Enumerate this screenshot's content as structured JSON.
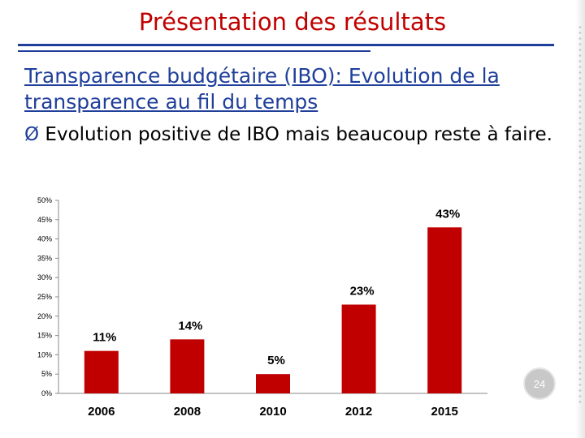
{
  "slide": {
    "title": "Présentation des résultats",
    "subtitle": "Transparence  budgétaire  (IBO):  Evolution de la transparence au fil du temps",
    "bullet_marker": "Ø",
    "bullet_text": "Evolution positive de IBO mais beaucoup reste à faire.",
    "page_number": "24"
  },
  "colors": {
    "title": "#c00000",
    "subtitle": "#1f3f9a",
    "bar": "#c00000"
  },
  "chart_data": {
    "type": "bar",
    "categories": [
      "2006",
      "2008",
      "2010",
      "2012",
      "2015"
    ],
    "values": [
      11,
      14,
      5,
      23,
      43
    ],
    "data_labels": [
      "11%",
      "14%",
      "5%",
      "23%",
      "43%"
    ],
    "ylim": [
      0,
      50
    ],
    "yticks": [
      0,
      5,
      10,
      15,
      20,
      25,
      30,
      35,
      40,
      45,
      50
    ],
    "ytick_labels": [
      "0%",
      "5%",
      "10%",
      "15%",
      "20%",
      "25%",
      "30%",
      "35%",
      "40%",
      "45%",
      "50%"
    ],
    "grid": false,
    "legend": "none"
  }
}
